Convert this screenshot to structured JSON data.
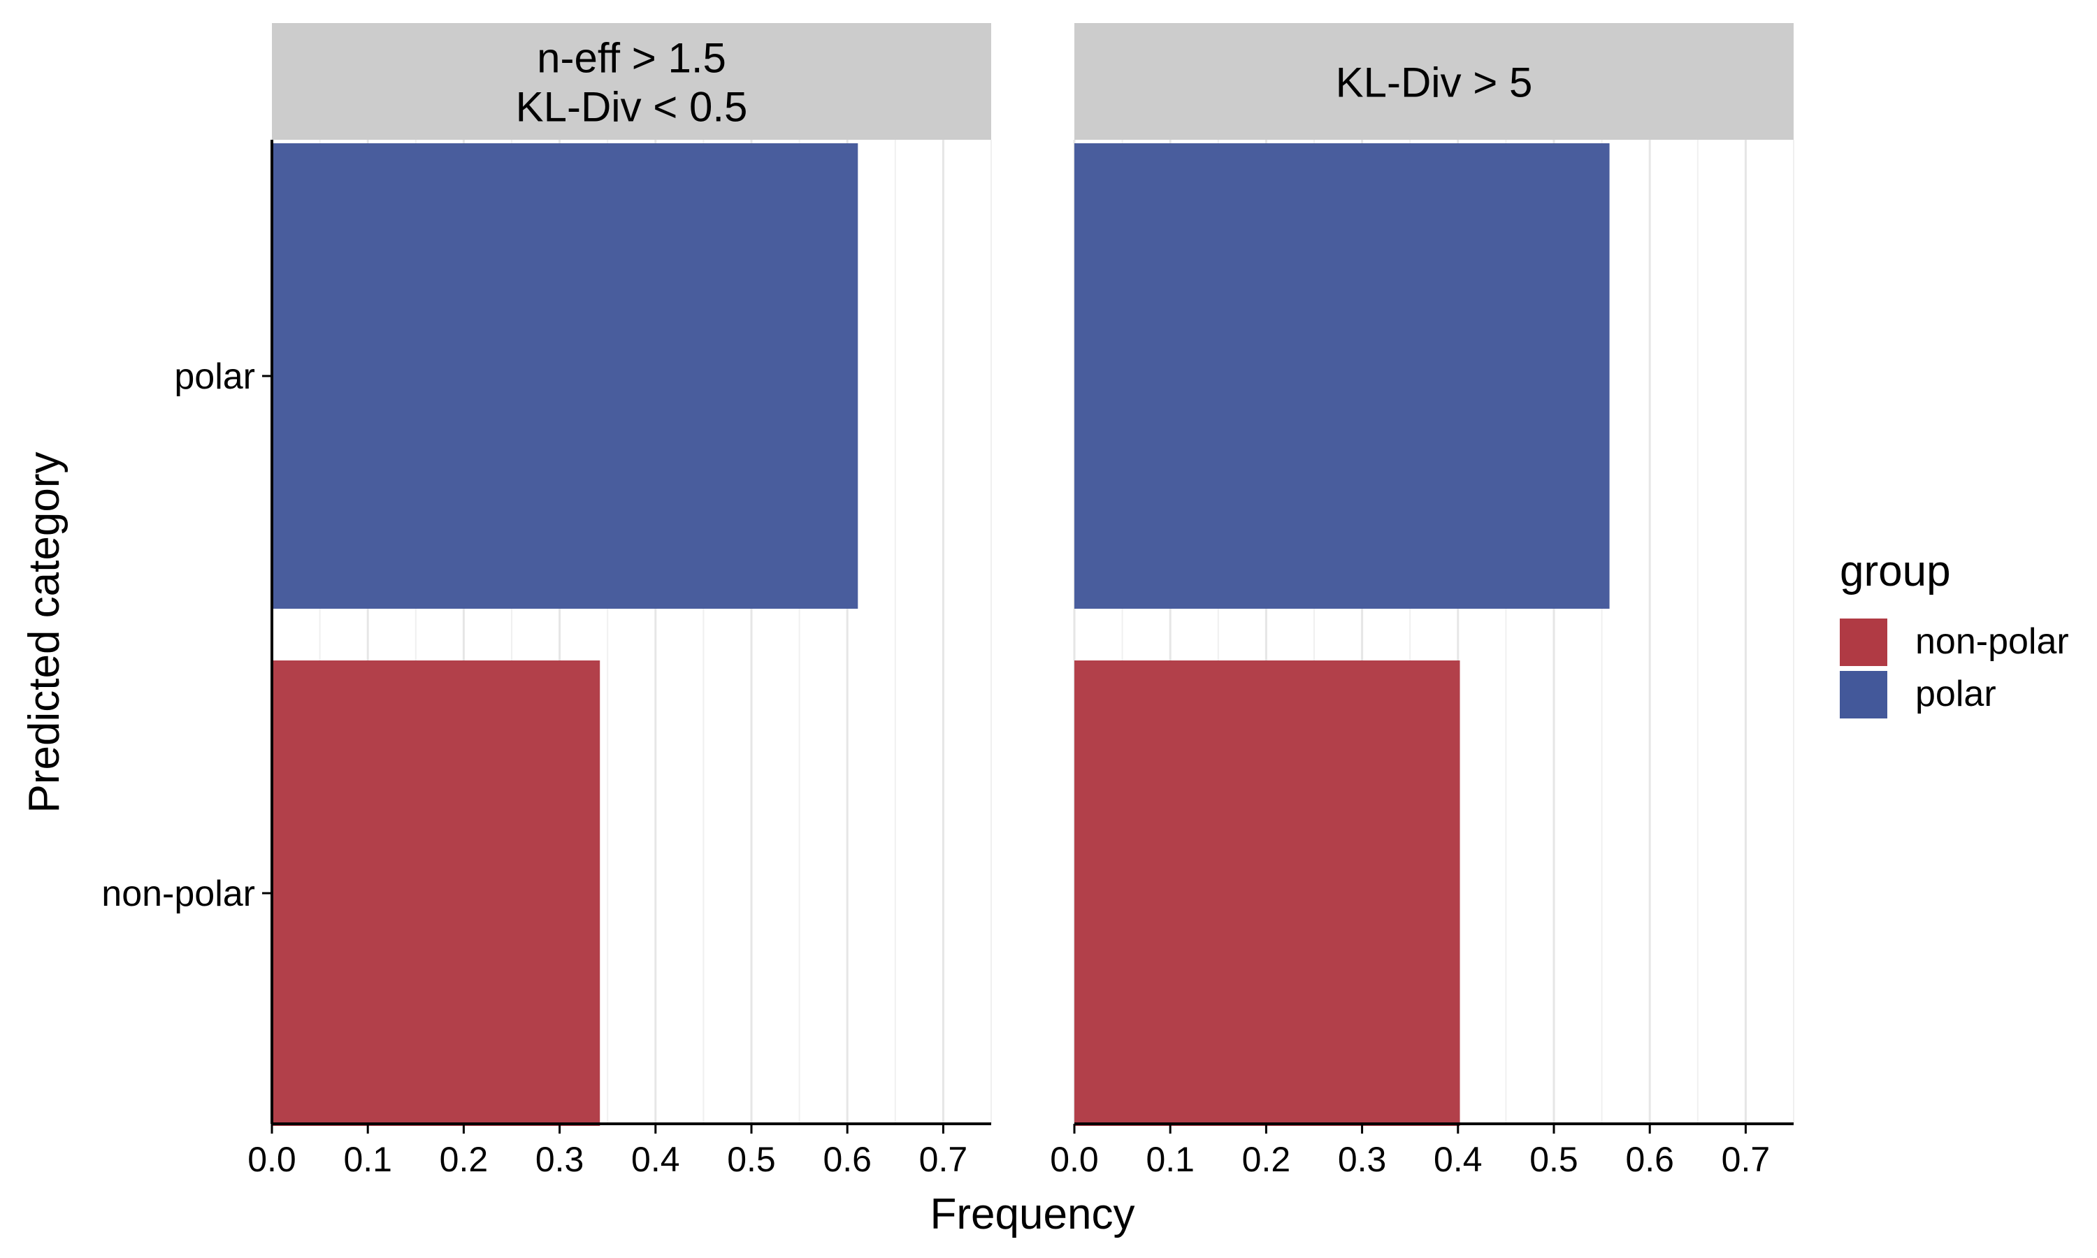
{
  "chart_data": {
    "type": "bar",
    "orientation": "horizontal",
    "xlabel": "Frequency",
    "ylabel": "Predicted category",
    "categories": [
      "non-polar",
      "polar"
    ],
    "xlim": [
      0,
      0.75
    ],
    "xticks": [
      "0.0",
      "0.1",
      "0.2",
      "0.3",
      "0.4",
      "0.5",
      "0.6",
      "0.7"
    ],
    "grid": "vertical major and minor",
    "legend": {
      "title": "group",
      "position": "right",
      "entries": [
        {
          "label": "non-polar",
          "color": "#b03a44"
        },
        {
          "label": "polar",
          "color": "#43589a"
        }
      ]
    },
    "facets": [
      {
        "strip_lines": [
          "n-eff > 1.5",
          "KL-Div < 0.5"
        ],
        "series": [
          {
            "name": "non-polar",
            "values": [
              0.342
            ]
          },
          {
            "name": "polar",
            "values": [
              0.611
            ]
          }
        ]
      },
      {
        "strip_lines": [
          "KL-Div > 5"
        ],
        "series": [
          {
            "name": "non-polar",
            "values": [
              0.402
            ]
          },
          {
            "name": "polar",
            "values": [
              0.558
            ]
          }
        ]
      }
    ]
  }
}
